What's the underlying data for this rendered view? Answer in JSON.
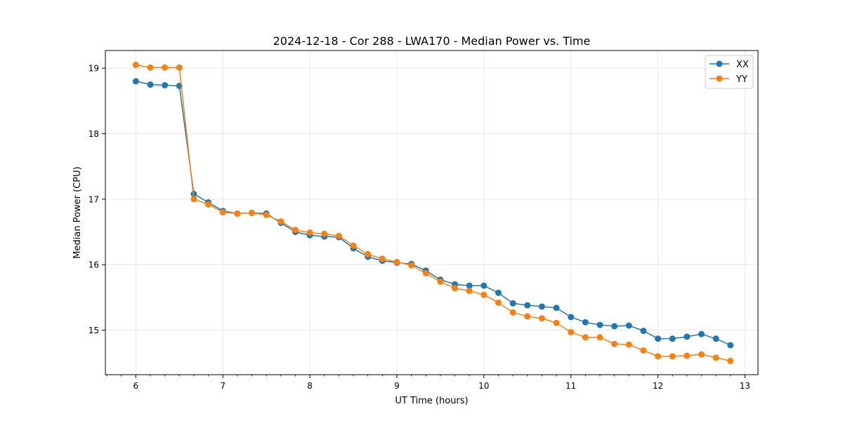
{
  "chart_data": {
    "type": "line",
    "title": "2024-12-18 - Cor 288 - LWA170 - Median Power vs. Time",
    "xlabel": "UT Time (hours)",
    "ylabel": "Median Power (CPU)",
    "xlim": [
      5.65,
      13.15
    ],
    "ylim": [
      14.32,
      19.27
    ],
    "xticks": [
      6,
      7,
      8,
      9,
      10,
      11,
      12,
      13
    ],
    "yticks": [
      15,
      16,
      17,
      18,
      19
    ],
    "grid": true,
    "legend_position": "top-right",
    "x": [
      6.0,
      6.1667,
      6.3333,
      6.5,
      6.6667,
      6.8333,
      7.0,
      7.1667,
      7.3333,
      7.5,
      7.6667,
      7.8333,
      8.0,
      8.1667,
      8.3333,
      8.5,
      8.6667,
      8.8333,
      9.0,
      9.1667,
      9.3333,
      9.5,
      9.6667,
      9.8333,
      10.0,
      10.1667,
      10.3333,
      10.5,
      10.6667,
      10.8333,
      11.0,
      11.1667,
      11.3333,
      11.5,
      11.6667,
      11.8333,
      12.0,
      12.1667,
      12.3333,
      12.5,
      12.6667,
      12.8333
    ],
    "series": [
      {
        "name": "XX",
        "color": "#1f77b4",
        "values": [
          18.8,
          18.75,
          18.74,
          18.73,
          17.08,
          16.95,
          16.82,
          16.78,
          16.79,
          16.78,
          16.64,
          16.5,
          16.45,
          16.43,
          16.42,
          16.25,
          16.12,
          16.06,
          16.03,
          16.01,
          15.91,
          15.77,
          15.7,
          15.68,
          15.68,
          15.57,
          15.41,
          15.38,
          15.36,
          15.34,
          15.2,
          15.12,
          15.08,
          15.06,
          15.07,
          14.99,
          14.87,
          14.87,
          14.9,
          14.94,
          14.87,
          14.77
        ]
      },
      {
        "name": "YY",
        "color": "#ff7f0e",
        "values": [
          19.05,
          19.01,
          19.01,
          19.01,
          17.0,
          16.92,
          16.8,
          16.78,
          16.79,
          16.76,
          16.66,
          16.53,
          16.49,
          16.47,
          16.44,
          16.29,
          16.16,
          16.09,
          16.04,
          15.99,
          15.87,
          15.74,
          15.64,
          15.6,
          15.54,
          15.42,
          15.27,
          15.21,
          15.18,
          15.11,
          14.97,
          14.89,
          14.89,
          14.79,
          14.78,
          14.69,
          14.6,
          14.6,
          14.61,
          14.63,
          14.58,
          14.53
        ]
      }
    ]
  }
}
